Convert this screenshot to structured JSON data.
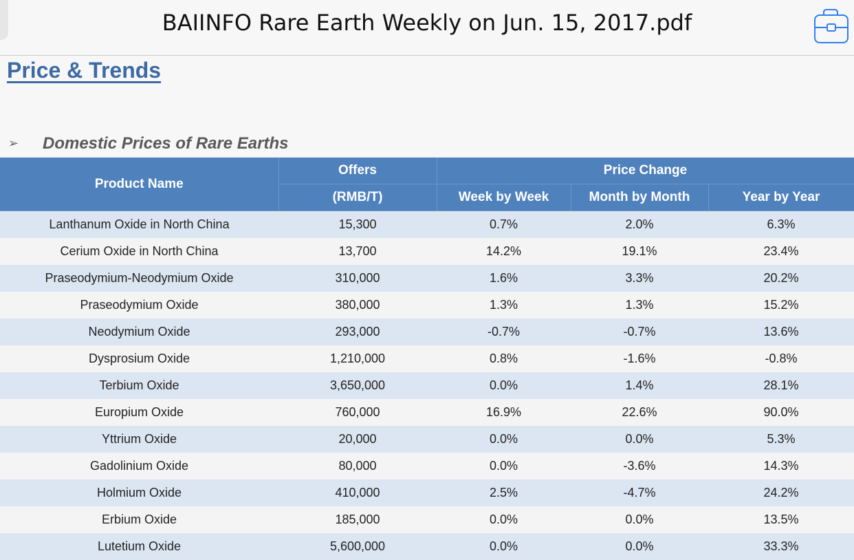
{
  "window": {
    "title": "BAIINFO Rare Earth Weekly on Jun. 15, 2017.pdf",
    "toolbox_icon": "toolbox-icon"
  },
  "document": {
    "section_title": "Price & Trends",
    "subsection_bullet": "➢",
    "subsection_title": "Domestic Prices of Rare Earths",
    "table": {
      "header": {
        "product_name": "Product Name",
        "offers": "Offers",
        "offers_unit": "(RMB/T)",
        "price_change": "Price Change",
        "week_by_week": "Week by Week",
        "month_by_month": "Month by Month",
        "year_by_year": "Year by Year"
      },
      "rows": [
        [
          "Lanthanum Oxide in North China",
          "15,300",
          "0.7%",
          "2.0%",
          "6.3%"
        ],
        [
          "Cerium Oxide in North China",
          "13,700",
          "14.2%",
          "19.1%",
          "23.4%"
        ],
        [
          "Praseodymium-Neodymium Oxide",
          "310,000",
          "1.6%",
          "3.3%",
          "20.2%"
        ],
        [
          "Praseodymium Oxide",
          "380,000",
          "1.3%",
          "1.3%",
          "15.2%"
        ],
        [
          "Neodymium Oxide",
          "293,000",
          "-0.7%",
          "-0.7%",
          "13.6%"
        ],
        [
          "Dysprosium Oxide",
          "1,210,000",
          "0.8%",
          "-1.6%",
          "-0.8%"
        ],
        [
          "Terbium Oxide",
          "3,650,000",
          "0.0%",
          "1.4%",
          "28.1%"
        ],
        [
          "Europium Oxide",
          "760,000",
          "16.9%",
          "22.6%",
          "90.0%"
        ],
        [
          "Yttrium Oxide",
          "20,000",
          "0.0%",
          "0.0%",
          "5.3%"
        ],
        [
          "Gadolinium Oxide",
          "80,000",
          "0.0%",
          "-3.6%",
          "14.3%"
        ],
        [
          "Holmium Oxide",
          "410,000",
          "2.5%",
          "-4.7%",
          "24.2%"
        ],
        [
          "Erbium Oxide",
          "185,000",
          "0.0%",
          "0.0%",
          "13.5%"
        ],
        [
          "Lutetium Oxide",
          "5,600,000",
          "0.0%",
          "0.0%",
          "33.3%"
        ]
      ]
    }
  },
  "colors": {
    "header_blue": "#4f81bd",
    "row_band": "#dce6f2",
    "title_blue": "#3d6aa4"
  }
}
